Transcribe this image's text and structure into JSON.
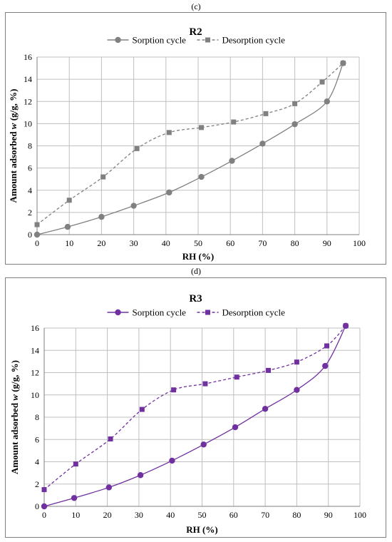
{
  "panels": [
    {
      "letter": "(c)"
    },
    {
      "letter": "(d)"
    }
  ],
  "chart_data": [
    {
      "type": "line",
      "title": "R2",
      "xlabel": "RH (%)",
      "ylabel_parts": [
        "Amount adsorbed ",
        "w",
        " (g/g, %)"
      ],
      "xlim": [
        0,
        100
      ],
      "ylim": [
        0,
        16
      ],
      "xticks": [
        0,
        10,
        20,
        30,
        40,
        50,
        60,
        70,
        80,
        90,
        100
      ],
      "yticks": [
        0,
        2,
        4,
        6,
        8,
        10,
        12,
        14,
        16
      ],
      "grid": true,
      "legend_position": "top",
      "series": [
        {
          "name": "Sorption cycle",
          "style": "solid",
          "marker": "circle",
          "color": "#808080",
          "x": [
            0,
            9.5,
            20,
            30,
            41,
            51,
            60.5,
            70,
            80,
            90,
            95
          ],
          "y": [
            0,
            0.7,
            1.6,
            2.6,
            3.8,
            5.2,
            6.65,
            8.2,
            9.95,
            12.0,
            15.45
          ]
        },
        {
          "name": "Desorption cycle",
          "style": "dashed",
          "marker": "square",
          "color": "#808080",
          "x": [
            0,
            10,
            20.5,
            31,
            41,
            51,
            61,
            71,
            80,
            88.5,
            95
          ],
          "y": [
            0.9,
            3.1,
            5.2,
            7.75,
            9.2,
            9.65,
            10.15,
            10.9,
            11.8,
            13.75,
            15.45
          ]
        }
      ]
    },
    {
      "type": "line",
      "title": "R3",
      "xlabel": "RH (%)",
      "ylabel_parts": [
        "Amount adsorbed ",
        "w",
        " (g/g, %)"
      ],
      "xlim": [
        0,
        100
      ],
      "ylim": [
        0,
        16
      ],
      "xticks": [
        0,
        10,
        20,
        30,
        40,
        50,
        60,
        70,
        80,
        90,
        100
      ],
      "yticks": [
        0,
        2,
        4,
        6,
        8,
        10,
        12,
        14,
        16
      ],
      "grid": true,
      "legend_position": "top",
      "series": [
        {
          "name": "Sorption cycle",
          "style": "solid",
          "marker": "circle",
          "color": "#7030a0",
          "x": [
            0,
            9.5,
            20.5,
            30.5,
            40.5,
            50.5,
            60.5,
            70,
            80,
            89,
            95.5
          ],
          "y": [
            0,
            0.75,
            1.7,
            2.8,
            4.1,
            5.55,
            7.1,
            8.75,
            10.45,
            12.6,
            16.2
          ]
        },
        {
          "name": "Desorption cycle",
          "style": "dashed",
          "marker": "square",
          "color": "#7030a0",
          "x": [
            0,
            10,
            21,
            31,
            41,
            51,
            61,
            71,
            80,
            89.5,
            95.5
          ],
          "y": [
            1.5,
            3.8,
            6.05,
            8.7,
            10.45,
            11.0,
            11.6,
            12.2,
            12.95,
            14.4,
            16.2
          ]
        }
      ]
    }
  ]
}
